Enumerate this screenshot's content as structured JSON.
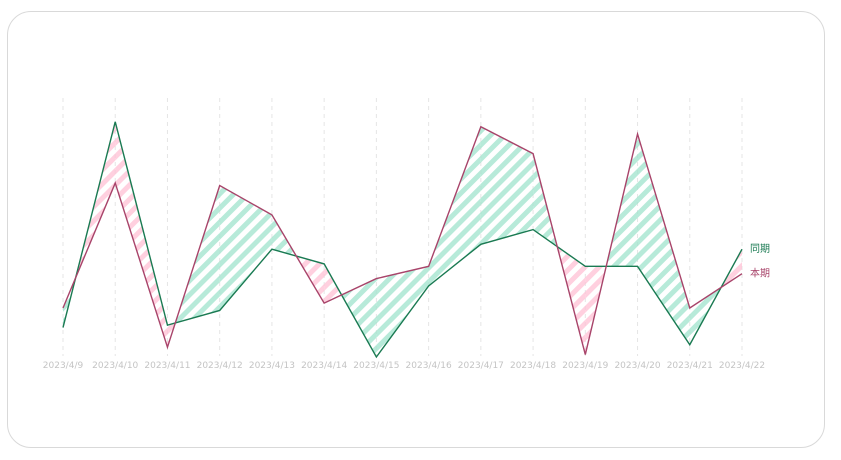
{
  "chart_data": {
    "type": "line",
    "x": [
      "2023/4/9",
      "2023/4/10",
      "2023/4/11",
      "2023/4/12",
      "2023/4/13",
      "2023/4/14",
      "2023/4/15",
      "2023/4/16",
      "2023/4/17",
      "2023/4/18",
      "2023/4/19",
      "2023/4/20",
      "2023/4/21",
      "2023/4/22"
    ],
    "series": [
      {
        "name": "同期",
        "values": [
          12,
          96,
          13,
          19,
          44,
          38,
          0,
          29,
          46,
          52,
          37,
          37,
          5,
          44
        ]
      },
      {
        "name": "本期",
        "values": [
          20,
          71,
          4,
          70,
          58,
          22,
          32,
          37,
          94,
          83,
          1,
          91,
          20,
          34
        ]
      }
    ],
    "ylim": [
      0,
      100
    ],
    "colors": {
      "同期": "#1a7a52",
      "本期": "#a8446a",
      "fill_higher": "#9fe3cc",
      "fill_lower": "#ffc0d4"
    },
    "grid": "vertical dashed",
    "legend": "end-of-line labels"
  }
}
